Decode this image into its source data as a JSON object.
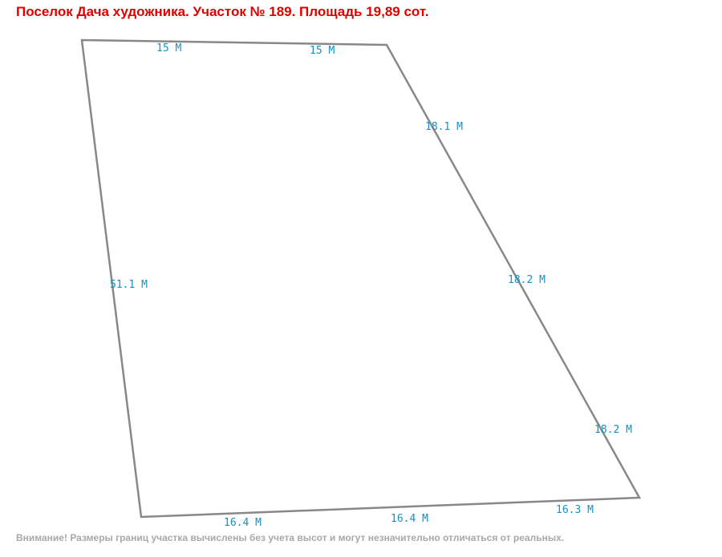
{
  "title": "Поселок Дача художника. Участок № 189. Площадь 19,89 сот.",
  "edge_labels": [
    "15 М",
    "15 М",
    "18.1 М",
    "18.2 М",
    "18.2 М",
    "16.3 М",
    "16.4 М",
    "16.4 М",
    "51.1 М"
  ],
  "note": "Внимание! Размеры границ участка вычислены без учета высот и могут незначительно отличаться от реальных."
}
